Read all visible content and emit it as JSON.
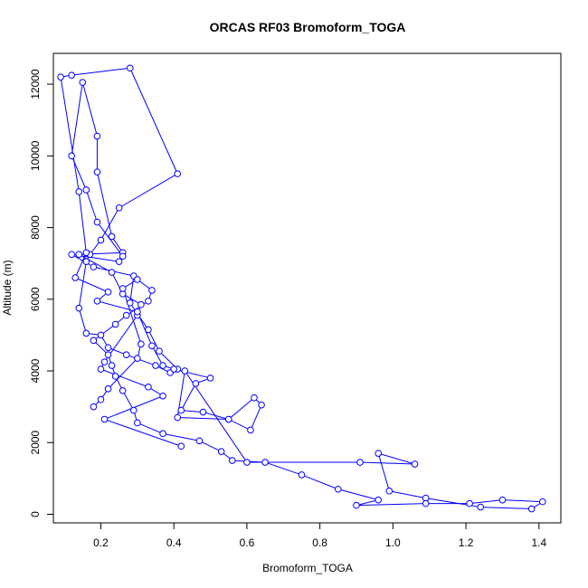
{
  "chart_data": {
    "type": "line",
    "title": "ORCAS RF03 Bromoform_TOGA",
    "xlabel": "Bromoform_TOGA",
    "ylabel": "Altitude (m)",
    "xlim": [
      0.07,
      1.46
    ],
    "ylim": [
      -240,
      12860
    ],
    "x_ticks": [
      "0.2",
      "0.4",
      "0.6",
      "0.8",
      "1.0",
      "1.2",
      "1.4"
    ],
    "y_ticks": [
      "0",
      "2000",
      "4000",
      "6000",
      "8000",
      "10000",
      "12000"
    ],
    "grid": false,
    "legend": "none",
    "series": [
      {
        "color": "#0000ff",
        "marker": "open-circle",
        "points": [
          [
            0.42,
            1900
          ],
          [
            0.21,
            2650
          ],
          [
            0.37,
            3300
          ],
          [
            0.33,
            3550
          ],
          [
            0.2,
            4050
          ],
          [
            0.21,
            4250
          ],
          [
            0.3,
            5550
          ],
          [
            0.31,
            5850
          ],
          [
            0.26,
            6150
          ],
          [
            0.23,
            6750
          ],
          [
            0.14,
            7250
          ],
          [
            0.26,
            7300
          ],
          [
            0.23,
            7750
          ],
          [
            0.19,
            9550
          ],
          [
            0.19,
            10550
          ],
          [
            0.15,
            12050
          ],
          [
            0.12,
            10000
          ],
          [
            0.16,
            9050
          ],
          [
            0.19,
            8150
          ],
          [
            0.26,
            7200
          ],
          [
            0.25,
            7050
          ],
          [
            0.12,
            7250
          ],
          [
            0.18,
            6900
          ],
          [
            0.29,
            6650
          ],
          [
            0.28,
            5900
          ],
          [
            0.33,
            5150
          ],
          [
            0.36,
            4550
          ],
          [
            0.41,
            4050
          ],
          [
            0.39,
            3950
          ],
          [
            0.35,
            4150
          ],
          [
            0.27,
            4450
          ],
          [
            0.22,
            4650
          ],
          [
            0.2,
            5000
          ],
          [
            0.16,
            5050
          ],
          [
            0.14,
            5750
          ],
          [
            0.16,
            7050
          ],
          [
            0.17,
            7250
          ],
          [
            0.2,
            7650
          ],
          [
            0.25,
            8550
          ],
          [
            0.41,
            9500
          ],
          [
            0.28,
            12450
          ],
          [
            0.12,
            12250
          ],
          [
            0.09,
            12200
          ],
          [
            0.14,
            9000
          ],
          [
            0.16,
            7300
          ],
          [
            0.13,
            6600
          ],
          [
            0.22,
            6200
          ],
          [
            0.19,
            5950
          ],
          [
            0.3,
            5650
          ],
          [
            0.34,
            4700
          ],
          [
            0.37,
            4150
          ],
          [
            0.4,
            4050
          ],
          [
            0.5,
            3800
          ],
          [
            0.46,
            3650
          ],
          [
            0.42,
            2900
          ],
          [
            0.48,
            2850
          ],
          [
            0.55,
            2650
          ],
          [
            0.61,
            2350
          ],
          [
            0.64,
            3050
          ],
          [
            0.62,
            3250
          ],
          [
            0.55,
            2650
          ],
          [
            0.41,
            2700
          ],
          [
            0.43,
            4000
          ],
          [
            0.6,
            1450
          ],
          [
            0.91,
            1450
          ],
          [
            1.06,
            1400
          ],
          [
            0.96,
            1700
          ],
          [
            0.99,
            650
          ],
          [
            1.09,
            450
          ],
          [
            1.24,
            200
          ],
          [
            1.38,
            150
          ],
          [
            1.41,
            350
          ],
          [
            1.3,
            400
          ],
          [
            1.21,
            300
          ],
          [
            1.09,
            300
          ],
          [
            0.9,
            250
          ],
          [
            0.96,
            400
          ],
          [
            0.85,
            700
          ],
          [
            0.75,
            1100
          ],
          [
            0.65,
            1450
          ],
          [
            0.56,
            1500
          ],
          [
            0.53,
            1750
          ],
          [
            0.47,
            2050
          ],
          [
            0.37,
            2250
          ],
          [
            0.3,
            2550
          ],
          [
            0.29,
            2900
          ],
          [
            0.26,
            3450
          ],
          [
            0.24,
            3850
          ],
          [
            0.23,
            4150
          ],
          [
            0.22,
            4450
          ],
          [
            0.18,
            4850
          ],
          [
            0.24,
            5300
          ],
          [
            0.27,
            5550
          ],
          [
            0.33,
            5950
          ],
          [
            0.34,
            6250
          ],
          [
            0.3,
            6550
          ],
          [
            0.26,
            6300
          ],
          [
            0.31,
            4750
          ],
          [
            0.3,
            4350
          ],
          [
            0.22,
            3500
          ],
          [
            0.2,
            3200
          ],
          [
            0.18,
            3000
          ]
        ]
      }
    ]
  }
}
